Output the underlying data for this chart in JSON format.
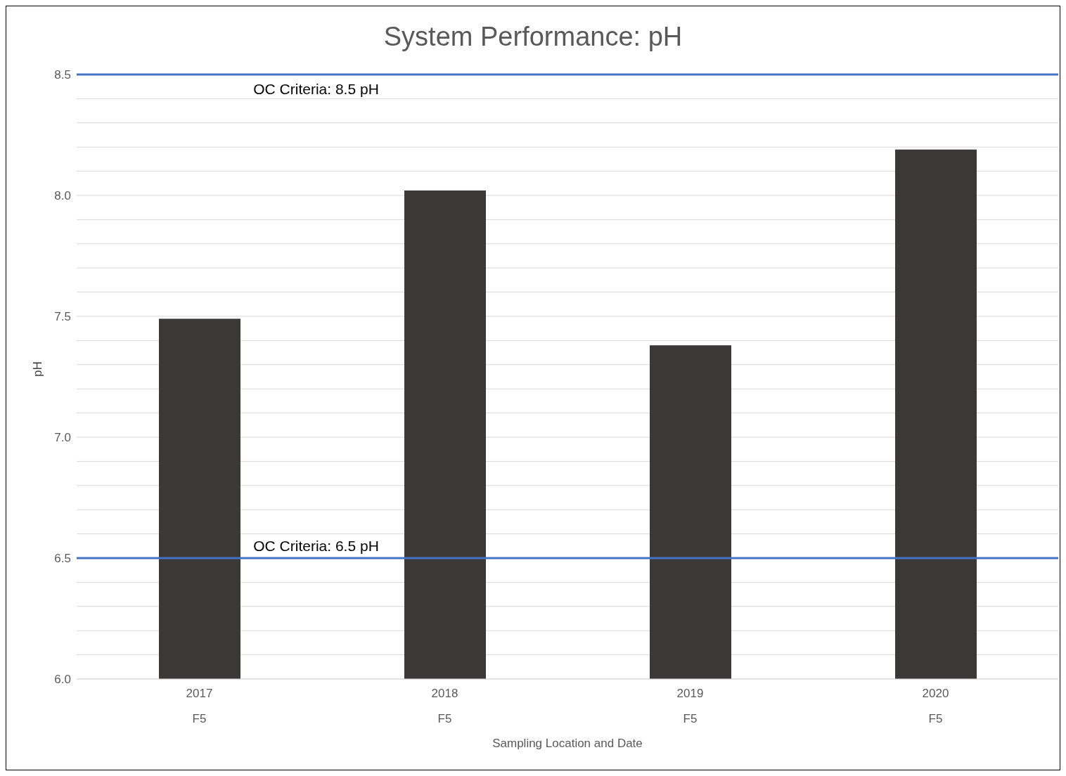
{
  "chart_data": {
    "type": "bar",
    "title": "System Performance: pH",
    "xlabel": "Sampling Location and Date",
    "ylabel": "pH",
    "categories": [
      "2017\nF5",
      "2018\nF5",
      "2019\nF5",
      "2020\nF5"
    ],
    "values": [
      7.49,
      8.02,
      7.38,
      8.19
    ],
    "color": "#3a3938",
    "ylim": [
      6.0,
      8.5
    ],
    "yticks": [
      {
        "value": 6.0,
        "label": "6.0"
      },
      {
        "value": 6.1,
        "label": null
      },
      {
        "value": 6.2,
        "label": null
      },
      {
        "value": 6.3,
        "label": null
      },
      {
        "value": 6.4,
        "label": null
      },
      {
        "value": 6.5,
        "label": "6.5"
      },
      {
        "value": 6.6,
        "label": null
      },
      {
        "value": 6.7,
        "label": null
      },
      {
        "value": 6.8,
        "label": null
      },
      {
        "value": 6.9,
        "label": null
      },
      {
        "value": 7.0,
        "label": "7.0"
      },
      {
        "value": 7.1,
        "label": null
      },
      {
        "value": 7.2,
        "label": null
      },
      {
        "value": 7.3,
        "label": null
      },
      {
        "value": 7.4,
        "label": null
      },
      {
        "value": 7.5,
        "label": "7.5"
      },
      {
        "value": 7.6,
        "label": null
      },
      {
        "value": 7.7,
        "label": null
      },
      {
        "value": 7.8,
        "label": null
      },
      {
        "value": 7.9,
        "label": null
      },
      {
        "value": 8.0,
        "label": "8.0"
      },
      {
        "value": 8.1,
        "label": null
      },
      {
        "value": 8.2,
        "label": null
      },
      {
        "value": 8.3,
        "label": null
      },
      {
        "value": 8.4,
        "label": null
      },
      {
        "value": 8.5,
        "label": "8.5"
      }
    ],
    "ref_lines": [
      {
        "axis": "y",
        "value": 8.5,
        "label": "OC Criteria: 8.5 pH",
        "color": "#4472c4"
      },
      {
        "axis": "y",
        "value": 6.5,
        "label": "OC Criteria: 6.5 pH",
        "color": "#4472c4"
      }
    ],
    "grid": "y"
  }
}
